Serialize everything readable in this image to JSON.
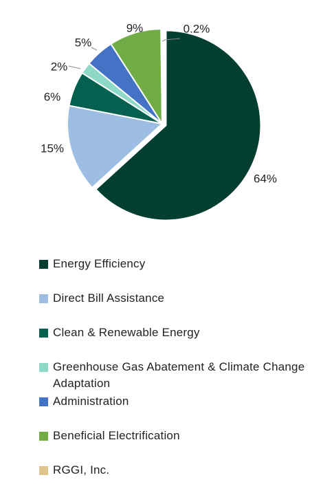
{
  "chart_data": {
    "type": "pie",
    "title": "",
    "slices": [
      {
        "label": "Energy Efficiency",
        "value": 64,
        "value_label": "64%",
        "color": "#033f31",
        "exploded": true
      },
      {
        "label": "Direct Bill Assistance",
        "value": 15,
        "value_label": "15%",
        "color": "#9dbde3"
      },
      {
        "label": "Clean & Renewable Energy",
        "value": 6,
        "value_label": "6%",
        "color": "#06604f"
      },
      {
        "label": "Greenhouse Gas Abatement & Climate Change Adaptation",
        "value": 2,
        "value_label": "2%",
        "color": "#8ed8c8"
      },
      {
        "label": "Administration",
        "value": 5,
        "value_label": "5%",
        "color": "#4472c4"
      },
      {
        "label": "Beneficial Electrification",
        "value": 9,
        "value_label": "9%",
        "color": "#70ad47"
      },
      {
        "label": "RGGI, Inc.",
        "value": 0.2,
        "value_label": "0.2%",
        "color": "#dfc58c"
      }
    ],
    "legend_position": "bottom",
    "start": "12 o'clock",
    "direction": "clockwise"
  }
}
